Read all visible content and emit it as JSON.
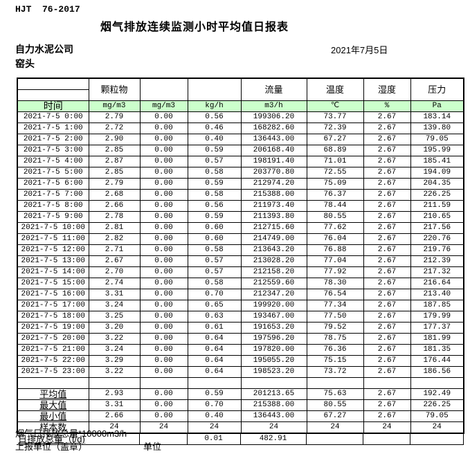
{
  "page": {
    "standard_code": "HJT  76-2017",
    "title": "烟气排放连续监测小时平均值日报表",
    "company": "自力水泥公司",
    "date": "2021年7月5日",
    "monitoring_point": "窑头"
  },
  "colors": {
    "header_green": "#ccffcc",
    "border": "#000000"
  },
  "table": {
    "header": {
      "time_label": "时间",
      "group_particulate": "颗粒物",
      "group_flow": "流量",
      "group_temperature": "温度",
      "group_humidity": "湿度",
      "group_pressure": "压力",
      "units": [
        "mg/m3",
        "mg/m3",
        "kg/h",
        "m3/h",
        "℃",
        "%",
        "Pa"
      ]
    },
    "rows": [
      [
        "2021-7-5 0:00",
        "2.79",
        "0.00",
        "0.56",
        "199306.20",
        "73.77",
        "2.67",
        "183.14"
      ],
      [
        "2021-7-5 1:00",
        "2.72",
        "0.00",
        "0.46",
        "168282.60",
        "72.39",
        "2.67",
        "139.80"
      ],
      [
        "2021-7-5 2:00",
        "2.90",
        "0.00",
        "0.40",
        "136443.00",
        "67.27",
        "2.67",
        "79.05"
      ],
      [
        "2021-7-5 3:00",
        "2.85",
        "0.00",
        "0.59",
        "206168.40",
        "68.89",
        "2.67",
        "195.99"
      ],
      [
        "2021-7-5 4:00",
        "2.87",
        "0.00",
        "0.57",
        "198191.40",
        "71.01",
        "2.67",
        "185.41"
      ],
      [
        "2021-7-5 5:00",
        "2.85",
        "0.00",
        "0.58",
        "203770.80",
        "72.55",
        "2.67",
        "194.09"
      ],
      [
        "2021-7-5 6:00",
        "2.79",
        "0.00",
        "0.59",
        "212974.20",
        "75.09",
        "2.67",
        "204.35"
      ],
      [
        "2021-7-5 7:00",
        "2.68",
        "0.00",
        "0.58",
        "215388.00",
        "76.37",
        "2.67",
        "226.25"
      ],
      [
        "2021-7-5 8:00",
        "2.66",
        "0.00",
        "0.56",
        "211973.40",
        "78.44",
        "2.67",
        "211.59"
      ],
      [
        "2021-7-5 9:00",
        "2.78",
        "0.00",
        "0.59",
        "211393.80",
        "80.55",
        "2.67",
        "210.65"
      ],
      [
        "2021-7-5 10:00",
        "2.81",
        "0.00",
        "0.60",
        "212715.60",
        "77.62",
        "2.67",
        "217.56"
      ],
      [
        "2021-7-5 11:00",
        "2.82",
        "0.00",
        "0.60",
        "214749.00",
        "76.04",
        "2.67",
        "220.76"
      ],
      [
        "2021-7-5 12:00",
        "2.71",
        "0.00",
        "0.58",
        "213643.20",
        "76.88",
        "2.67",
        "219.76"
      ],
      [
        "2021-7-5 13:00",
        "2.67",
        "0.00",
        "0.57",
        "213028.20",
        "77.04",
        "2.67",
        "212.39"
      ],
      [
        "2021-7-5 14:00",
        "2.70",
        "0.00",
        "0.57",
        "212158.20",
        "77.92",
        "2.67",
        "217.32"
      ],
      [
        "2021-7-5 15:00",
        "2.74",
        "0.00",
        "0.58",
        "212559.60",
        "78.30",
        "2.67",
        "216.64"
      ],
      [
        "2021-7-5 16:00",
        "3.31",
        "0.00",
        "0.70",
        "212347.20",
        "76.54",
        "2.67",
        "213.40"
      ],
      [
        "2021-7-5 17:00",
        "3.24",
        "0.00",
        "0.65",
        "199920.00",
        "77.34",
        "2.67",
        "187.85"
      ],
      [
        "2021-7-5 18:00",
        "3.25",
        "0.00",
        "0.63",
        "193467.00",
        "77.50",
        "2.67",
        "179.99"
      ],
      [
        "2021-7-5 19:00",
        "3.20",
        "0.00",
        "0.61",
        "191653.20",
        "79.52",
        "2.67",
        "177.37"
      ],
      [
        "2021-7-5 20:00",
        "3.22",
        "0.00",
        "0.64",
        "197596.20",
        "78.75",
        "2.67",
        "181.99"
      ],
      [
        "2021-7-5 21:00",
        "3.24",
        "0.00",
        "0.64",
        "197820.00",
        "76.36",
        "2.67",
        "181.35"
      ],
      [
        "2021-7-5 22:00",
        "3.29",
        "0.00",
        "0.64",
        "195055.20",
        "75.15",
        "2.67",
        "176.44"
      ],
      [
        "2021-7-5 23:00",
        "3.22",
        "0.00",
        "0.64",
        "198523.20",
        "73.72",
        "2.67",
        "186.56"
      ]
    ],
    "summary": [
      {
        "label": "平均值",
        "underline": true,
        "values": [
          "2.93",
          "0.00",
          "0.59",
          "201213.65",
          "75.63",
          "2.67",
          "192.49"
        ]
      },
      {
        "label": "最大值",
        "underline": true,
        "values": [
          "3.31",
          "0.00",
          "0.70",
          "215388.00",
          "80.55",
          "2.67",
          "226.25"
        ]
      },
      {
        "label": "最小值",
        "underline": true,
        "values": [
          "2.66",
          "0.00",
          "0.40",
          "136443.00",
          "67.27",
          "2.67",
          "79.05"
        ]
      },
      {
        "label": "样本数",
        "underline": false,
        "values": [
          "24",
          "24",
          "24",
          "24",
          "24",
          "24",
          "24"
        ]
      }
    ],
    "daily_total": {
      "label": "日排放总量（t/d)",
      "particulate_kg_h": "0.01",
      "flow": "482.91"
    }
  },
  "footer": {
    "note": "烟气日排放总量*10000m3/h",
    "report_unit_label": "上报单位（盖章）",
    "unit_label": "单位"
  }
}
